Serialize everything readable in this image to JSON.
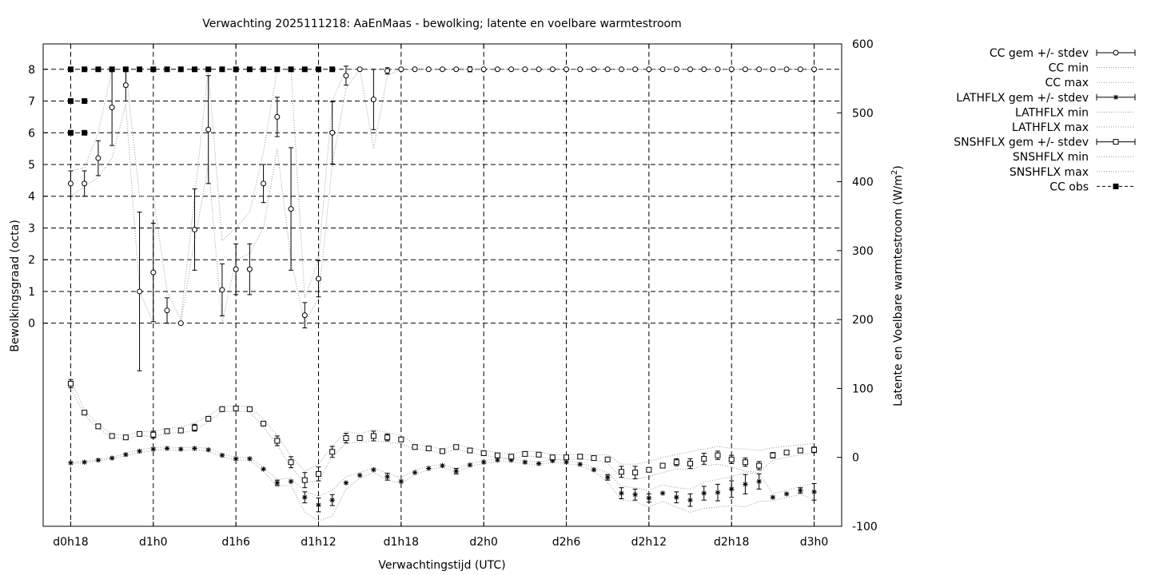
{
  "chart_data": {
    "type": "line",
    "title": "Verwachting 2025111218: AaEnMaas - bewolking; latente en voelbare warmtestroom",
    "xlabel": "Verwachtingstijd (UTC)",
    "ylabel": "Bewolkingsgraad (octa)",
    "y2label_main": "Latente en Voelbare warmtestroom (W/m",
    "y2label_sup": "2",
    "y2label_end": ")",
    "x_unit": "hours since d0h18",
    "xlim": [
      -2,
      56
    ],
    "ylim": [
      -6.4,
      8.8
    ],
    "y2lim": [
      -100,
      600
    ],
    "grid": true,
    "legend_position": "outside-right-top",
    "x_ticks": [
      {
        "label": "d0h18",
        "value": 0
      },
      {
        "label": "d1h0",
        "value": 6
      },
      {
        "label": "d1h6",
        "value": 12
      },
      {
        "label": "d1h12",
        "value": 18
      },
      {
        "label": "d1h18",
        "value": 24
      },
      {
        "label": "d2h0",
        "value": 30
      },
      {
        "label": "d2h6",
        "value": 36
      },
      {
        "label": "d2h12",
        "value": 42
      },
      {
        "label": "d2h18",
        "value": 48
      },
      {
        "label": "d3h0",
        "value": 54
      }
    ],
    "y_ticks": [
      "0",
      "1",
      "2",
      "3",
      "4",
      "5",
      "6",
      "7",
      "8"
    ],
    "y2_ticks": [
      "-100",
      "0",
      "100",
      "200",
      "300",
      "400",
      "500",
      "600"
    ],
    "legend": [
      "CC gem +/- stdev",
      "CC min",
      "CC max",
      "LATHFLX gem +/- stdev",
      "LATHFLX min",
      "LATHFLX max",
      "SNSHFLX gem +/- stdev",
      "SNSHFLX min",
      "SNSHFLX max",
      "CC obs"
    ],
    "cc_mean": {
      "x": [
        0,
        1,
        2,
        3,
        4,
        5,
        6,
        7,
        8,
        9,
        10,
        11,
        12,
        13,
        14,
        15,
        16,
        17,
        18,
        19,
        20,
        21,
        22,
        23,
        24,
        25,
        26,
        27,
        28,
        29,
        30,
        31,
        32,
        33,
        34,
        35,
        36,
        37,
        38,
        39,
        40,
        41,
        42,
        43,
        44,
        45,
        46,
        47,
        48,
        49,
        50,
        51,
        52,
        53,
        54
      ],
      "y": [
        4.4,
        4.4,
        5.2,
        6.8,
        7.5,
        1.0,
        1.6,
        0.4,
        0,
        2.95,
        6.1,
        1.05,
        1.7,
        1.7,
        4.4,
        6.5,
        3.6,
        0.25,
        1.4,
        6.0,
        7.8,
        8,
        7.05,
        7.95,
        8,
        8,
        8,
        8,
        8,
        8,
        8,
        8,
        8,
        8,
        8,
        8,
        8,
        8,
        8,
        8,
        8,
        8,
        8,
        8,
        8,
        8,
        8,
        8,
        8,
        8,
        8,
        8,
        8,
        8,
        8
      ],
      "stdev": [
        0.4,
        0.4,
        0.55,
        1.2,
        0.5,
        2.5,
        1.55,
        0.4,
        0,
        1.28,
        1.7,
        0.82,
        0.8,
        0.8,
        0.6,
        0.62,
        1.93,
        0.4,
        0.57,
        0.98,
        0.3,
        0,
        0.95,
        0.1,
        0,
        0,
        0,
        0,
        0,
        0.08,
        0,
        0,
        0,
        0,
        0,
        0,
        0,
        0,
        0,
        0,
        0,
        0,
        0,
        0,
        0,
        0,
        0,
        0,
        0,
        0,
        0,
        0,
        0,
        0,
        0
      ]
    },
    "cc_min": [
      4.0,
      4.3,
      4.6,
      5.2,
      6.9,
      1.0,
      0.0,
      0.0,
      0.0,
      2.6,
      5.0,
      0.0,
      2.0,
      2.2,
      3.0,
      5.5,
      2.0,
      0.0,
      0.8,
      5.0,
      7.4,
      8,
      5.5,
      7.8,
      8,
      8,
      8,
      8,
      8,
      8,
      8,
      8,
      8,
      8,
      8,
      8,
      8,
      8,
      8,
      8,
      8,
      8,
      8,
      8,
      8,
      8,
      8,
      8,
      8,
      8,
      8,
      8,
      8,
      8,
      8
    ],
    "cc_max": [
      4.8,
      4.9,
      6.0,
      8.0,
      8.0,
      4.0,
      4.0,
      1.0,
      0.1,
      4.0,
      8.0,
      2.6,
      3.0,
      3.5,
      5.4,
      8.0,
      8.0,
      0.8,
      2.0,
      7.0,
      8.0,
      8,
      8.0,
      8.0,
      8,
      8,
      8,
      8,
      8,
      8,
      8,
      8,
      8,
      8,
      8,
      8,
      8,
      8,
      8,
      8,
      8,
      8,
      8,
      8,
      8,
      8,
      8,
      8,
      8,
      8,
      8,
      8,
      8,
      8,
      8
    ],
    "cc_obs": {
      "x": [
        0,
        0,
        0,
        1,
        1,
        1,
        2,
        3,
        4,
        5,
        6,
        7,
        8,
        9,
        10,
        11,
        12,
        13,
        14,
        15,
        16,
        17,
        18,
        19
      ],
      "y": [
        8,
        7,
        6,
        8,
        7,
        6,
        8,
        8,
        8,
        8,
        8,
        8,
        8,
        8,
        8,
        8,
        8,
        8,
        8,
        8,
        8,
        8,
        8,
        8
      ]
    },
    "lathflx_mean": {
      "x": [
        0,
        1,
        2,
        3,
        4,
        5,
        6,
        7,
        8,
        9,
        10,
        11,
        12,
        13,
        14,
        15,
        16,
        17,
        18,
        19,
        20,
        21,
        22,
        23,
        24,
        25,
        26,
        27,
        28,
        29,
        30,
        31,
        32,
        33,
        34,
        35,
        36,
        37,
        38,
        39,
        40,
        41,
        42,
        43,
        44,
        45,
        46,
        47,
        48,
        49,
        50,
        51,
        52,
        53,
        54
      ],
      "y": [
        -8,
        -7,
        -4,
        -1,
        4,
        9,
        12,
        13,
        12,
        13,
        11,
        3,
        -2,
        -2,
        -17,
        -37,
        -35,
        -58,
        -69,
        -62,
        -37,
        -26,
        -18,
        -28,
        -35,
        -22,
        -16,
        -12,
        -20,
        -11,
        -7,
        -4,
        -4,
        -7,
        -9,
        -5,
        -7,
        -10,
        -18,
        -29,
        -52,
        -54,
        -59,
        -52,
        -58,
        -62,
        -52,
        -51,
        -46,
        -39,
        -35,
        -58,
        -53,
        -48,
        -50
      ],
      "stdev": [
        0,
        0,
        0,
        0,
        0,
        0,
        0,
        0,
        0,
        0,
        0,
        0,
        0,
        0,
        0,
        4,
        0,
        8,
        10,
        8,
        0,
        0,
        0,
        5,
        0,
        0,
        0,
        0,
        4,
        0,
        0,
        0,
        0,
        0,
        0,
        0,
        0,
        0,
        0,
        4,
        8,
        8,
        6,
        0,
        8,
        9,
        10,
        12,
        12,
        14,
        11,
        0,
        0,
        4,
        12
      ]
    },
    "lathflx_min": [
      -9,
      -8,
      -5,
      -2,
      2,
      7,
      10,
      11,
      10,
      11,
      9,
      1,
      -4,
      -4,
      -20,
      -42,
      -40,
      -80,
      -92,
      -85,
      -46,
      -30,
      -22,
      -33,
      -38,
      -25,
      -18,
      -14,
      -22,
      -13,
      -9,
      -6,
      -6,
      -9,
      -11,
      -7,
      -9,
      -12,
      -20,
      -36,
      -62,
      -64,
      -72,
      -64,
      -72,
      -80,
      -74,
      -72,
      -70,
      -72,
      -64,
      -63,
      -58,
      -54,
      -60
    ],
    "lathflx_max": [
      -7,
      -6,
      -3,
      0,
      6,
      11,
      14,
      15,
      14,
      15,
      13,
      5,
      0,
      0,
      -14,
      -32,
      -30,
      -50,
      -56,
      -48,
      -28,
      -22,
      -15,
      -23,
      -30,
      -18,
      -13,
      -10,
      -17,
      -9,
      -5,
      -2,
      -2,
      -5,
      -7,
      -3,
      -5,
      -8,
      -15,
      -22,
      -42,
      -44,
      -48,
      -40,
      -44,
      -46,
      -36,
      -32,
      -28,
      -22,
      -24,
      -53,
      -48,
      -42,
      -38
    ]
  },
  "sns_data": {
    "mean": [
      107,
      65,
      45,
      31,
      29,
      34,
      33,
      38,
      39,
      43,
      56,
      70,
      71,
      70,
      49,
      24,
      -7,
      -33,
      -24,
      8,
      28,
      28,
      31,
      29,
      26,
      15,
      13,
      9,
      15,
      10,
      6,
      3,
      1,
      5,
      4,
      0,
      0,
      1,
      -1,
      -3,
      -21,
      -22,
      -18,
      -12,
      -7,
      -9,
      -2,
      3,
      -3,
      -7,
      -12,
      3,
      7,
      10,
      11
    ],
    "stdev": [
      6,
      0,
      0,
      0,
      0,
      0,
      5,
      0,
      0,
      5,
      0,
      0,
      0,
      0,
      0,
      7,
      8,
      11,
      10,
      8,
      7,
      0,
      7,
      5,
      0,
      0,
      0,
      0,
      3,
      0,
      0,
      0,
      0,
      0,
      0,
      0,
      0,
      0,
      0,
      0,
      8,
      9,
      0,
      0,
      5,
      7,
      8,
      6,
      6,
      6,
      6,
      4,
      3,
      3,
      4
    ],
    "min": [
      100,
      62,
      42,
      29,
      27,
      32,
      30,
      35,
      36,
      39,
      52,
      66,
      67,
      66,
      44,
      18,
      -14,
      -36,
      -35,
      2,
      20,
      22,
      24,
      22,
      20,
      12,
      10,
      6,
      12,
      7,
      3,
      0,
      -2,
      2,
      1,
      -3,
      -3,
      -2,
      -4,
      -8,
      -30,
      -32,
      -28,
      -22,
      -17,
      -18,
      -12,
      -10,
      -14,
      -20,
      -22,
      -4,
      0,
      4,
      6
    ],
    "max": [
      114,
      68,
      48,
      34,
      32,
      37,
      38,
      42,
      44,
      50,
      60,
      74,
      75,
      74,
      55,
      32,
      2,
      -20,
      -10,
      16,
      38,
      34,
      40,
      36,
      32,
      19,
      16,
      12,
      18,
      14,
      10,
      7,
      5,
      9,
      8,
      4,
      4,
      5,
      3,
      4,
      -10,
      -10,
      -6,
      0,
      4,
      8,
      12,
      16,
      13,
      12,
      10,
      14,
      16,
      18,
      20
    ]
  }
}
